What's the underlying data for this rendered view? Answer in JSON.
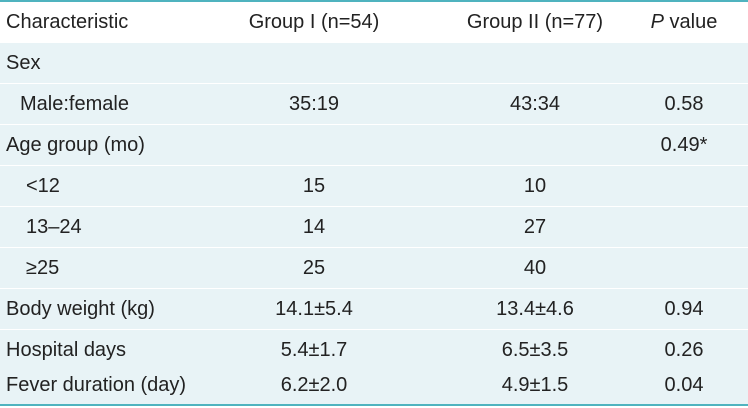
{
  "header": {
    "characteristic": "Characteristic",
    "group1": "Group I (n=54)",
    "group2": "Group II (n=77)",
    "pvalue_italic": "P",
    "pvalue_rest": " value"
  },
  "rows": [
    {
      "label": "Sex",
      "g1": "",
      "g2": "",
      "p": ""
    },
    {
      "label": "Male:female",
      "g1": "35:19",
      "g2": "43:34",
      "p": "0.58"
    },
    {
      "label": "Age group (mo)",
      "g1": "",
      "g2": "",
      "p": "0.49*"
    },
    {
      "label": "<12",
      "g1": "15",
      "g2": "10",
      "p": ""
    },
    {
      "label": "13–24",
      "g1": "14",
      "g2": "27",
      "p": ""
    },
    {
      "label": "≥25",
      "g1": "25",
      "g2": "40",
      "p": ""
    },
    {
      "label": "Body weight (kg)",
      "g1": "14.1±5.4",
      "g2": "13.4±4.6",
      "p": "0.94"
    },
    {
      "label": "Hospital days",
      "g1": "5.4±1.7",
      "g2": "6.5±3.5",
      "p": "0.26"
    },
    {
      "label": "Fever duration (day)",
      "g1": "6.2±2.0",
      "g2": "4.9±1.5",
      "p": "0.04"
    }
  ],
  "colors": {
    "rule": "#4fb3bf",
    "shade": "#e8f3f6"
  }
}
